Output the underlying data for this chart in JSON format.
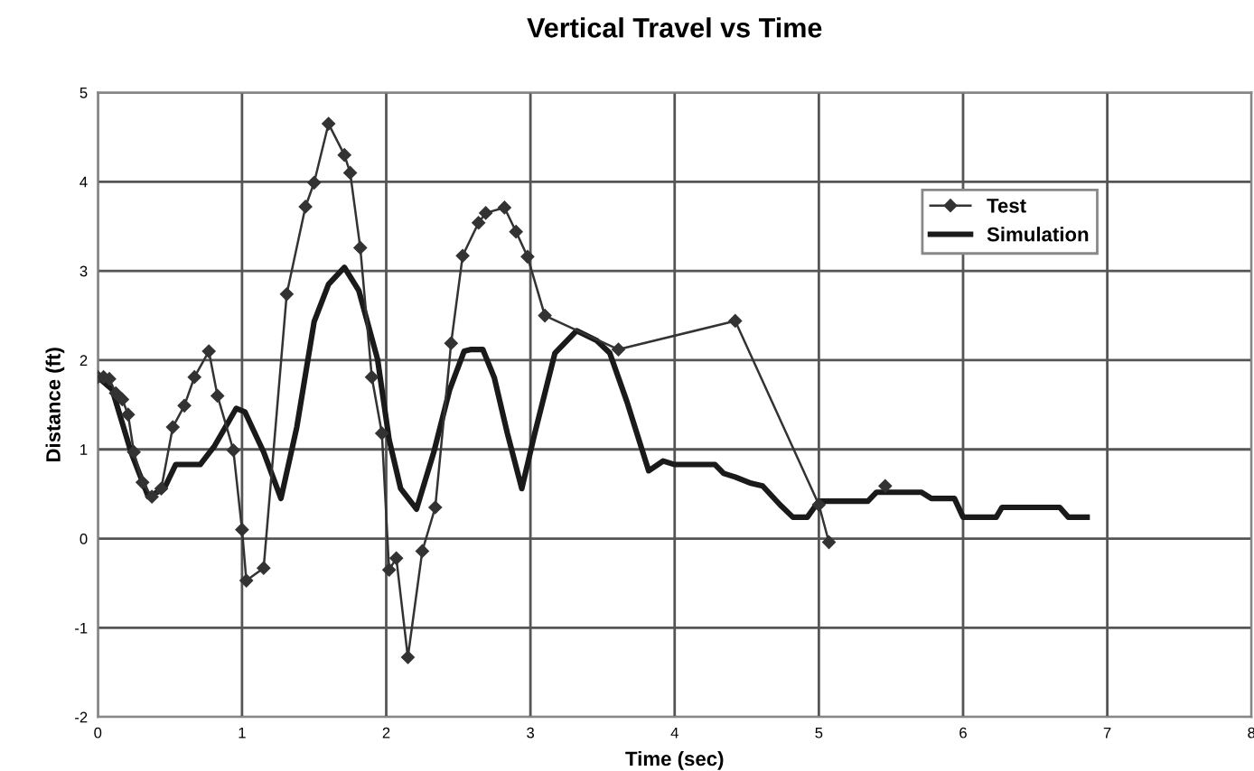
{
  "chart_data": {
    "type": "line",
    "title": "Vertical Travel vs Time",
    "xlabel": "Time (sec)",
    "ylabel": "Distance (ft)",
    "xlim": [
      0,
      8
    ],
    "xticks": [
      0,
      1,
      2,
      3,
      4,
      5,
      6,
      7,
      8
    ],
    "ylim": [
      -2,
      5
    ],
    "yticks": [
      -2,
      -1,
      0,
      1,
      2,
      3,
      4,
      5
    ],
    "grid": true,
    "legend": "top right",
    "series": [
      {
        "name": "Test",
        "color": "#333333",
        "marker": "diamond",
        "line_style": "solid",
        "x": [
          0,
          0.04,
          0.08,
          0.125,
          0.17,
          0.21,
          0.25,
          0.31,
          0.375,
          0.44,
          0.52,
          0.6,
          0.67,
          0.77,
          0.83,
          0.94,
          1.0,
          1.03,
          1.15,
          1.31,
          1.44,
          1.5,
          1.6,
          1.71,
          1.75,
          1.82,
          1.9,
          1.97,
          2.02,
          2.07,
          2.15,
          2.25,
          2.34,
          2.45,
          2.53,
          2.64,
          2.69,
          2.82,
          2.9,
          2.98,
          3.1,
          3.61,
          4.42,
          5.0,
          5.07,
          5.3,
          5.46
        ],
        "values": [
          1.81,
          1.81,
          1.79,
          1.63,
          1.56,
          1.39,
          0.97,
          0.63,
          0.47,
          0.56,
          1.25,
          1.49,
          1.81,
          2.1,
          1.6,
          0.99,
          0.1,
          -0.47,
          -0.33,
          2.74,
          3.72,
          3.99,
          4.65,
          4.3,
          4.1,
          3.26,
          1.81,
          1.18,
          -0.35,
          -0.22,
          -1.33,
          -0.14,
          0.35,
          2.19,
          3.17,
          3.54,
          3.65,
          3.71,
          3.44,
          3.16,
          2.5,
          2.12,
          2.44,
          0.38,
          -0.04,
          null,
          0.59
        ]
      },
      {
        "name": "Simulation",
        "color": "#1a1a1a",
        "marker": "none",
        "line_style": "solid",
        "x": [
          0,
          0.1,
          0.23,
          0.35,
          0.46,
          0.54,
          0.71,
          0.81,
          0.96,
          1.02,
          1.15,
          1.27,
          1.38,
          1.5,
          1.6,
          1.71,
          1.81,
          1.94,
          2.02,
          2.1,
          2.21,
          2.33,
          2.44,
          2.54,
          2.59,
          2.67,
          2.75,
          2.84,
          2.94,
          3.03,
          3.17,
          3.32,
          3.46,
          3.55,
          3.67,
          3.82,
          3.92,
          4.0,
          4.28,
          4.34,
          4.42,
          4.53,
          4.61,
          4.73,
          4.82,
          4.92,
          5.0,
          5.34,
          5.4,
          5.71,
          5.78,
          5.94,
          6.0,
          6.23,
          6.27,
          6.67,
          6.73,
          6.86
        ],
        "values": [
          1.81,
          1.67,
          0.97,
          0.47,
          0.56,
          0.83,
          0.83,
          1.04,
          1.46,
          1.42,
          0.97,
          0.45,
          1.25,
          2.43,
          2.85,
          3.04,
          2.78,
          2.01,
          1.11,
          0.56,
          0.33,
          0.97,
          1.67,
          2.1,
          2.12,
          2.12,
          1.8,
          1.18,
          0.56,
          1.18,
          2.08,
          2.33,
          2.22,
          2.08,
          1.53,
          0.76,
          0.87,
          0.83,
          0.83,
          0.73,
          0.69,
          0.62,
          0.59,
          0.38,
          0.24,
          0.24,
          0.42,
          0.42,
          0.52,
          0.52,
          0.45,
          0.45,
          0.24,
          0.24,
          0.35,
          0.35,
          0.24,
          0.24
        ]
      }
    ]
  }
}
